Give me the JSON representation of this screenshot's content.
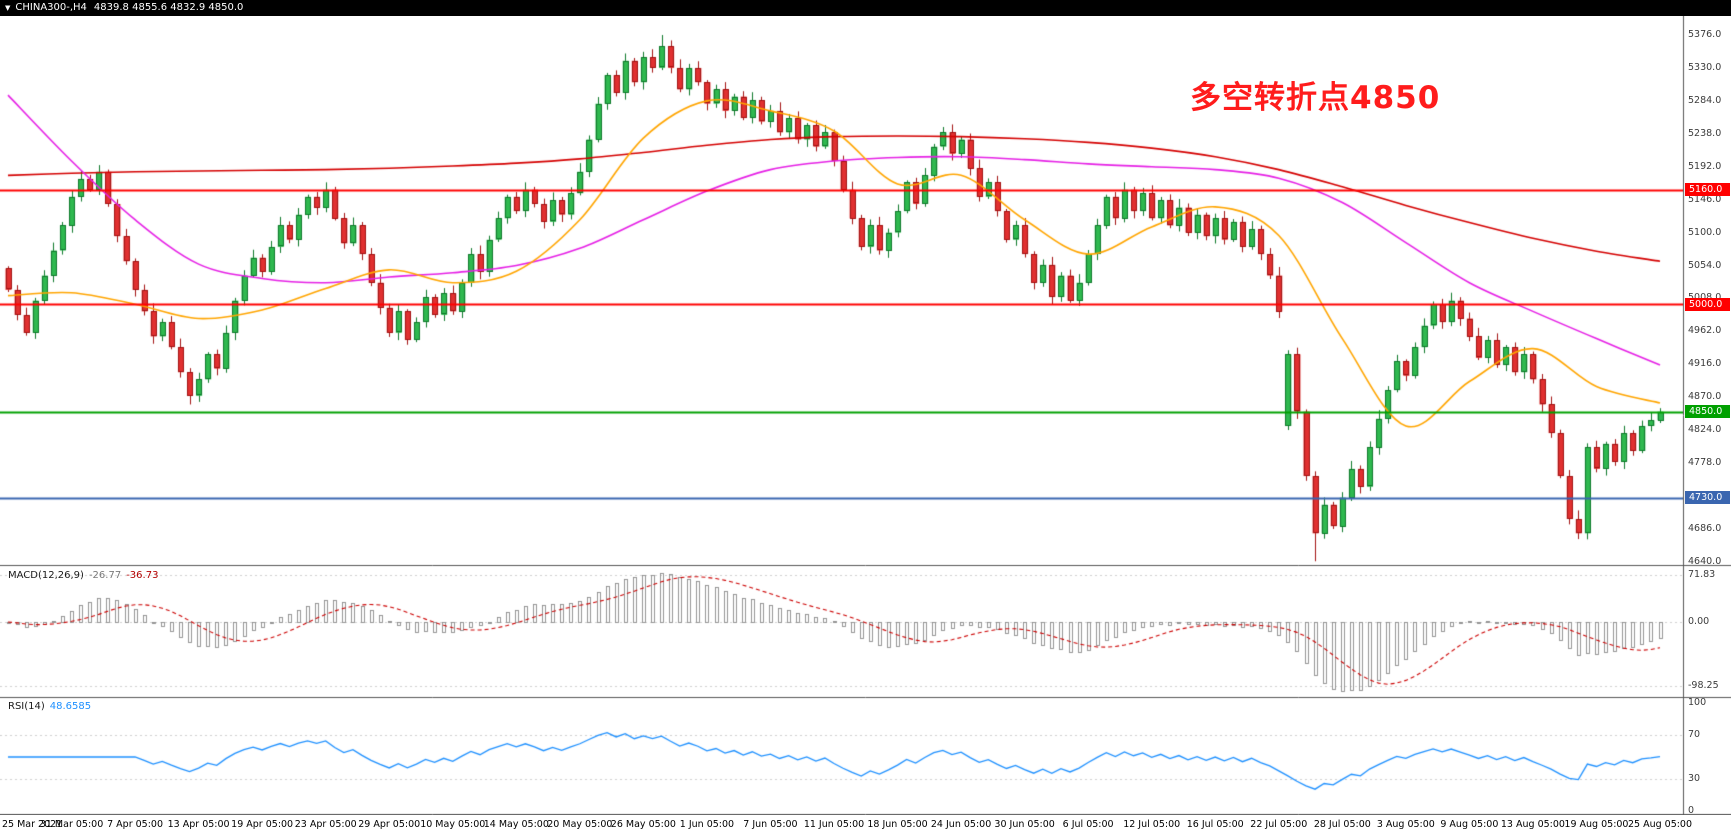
{
  "topbar": {
    "marker": "▼",
    "symbol": "CHINA300-,H4",
    "ohlc": "4839.8 4855.6 4832.9 4850.0"
  },
  "annotation": {
    "text": "多空转折点4850",
    "color": "#ff1c1c"
  },
  "chart_data": {
    "type": "candlestick",
    "symbol": "CHINA300-",
    "timeframe": "H4",
    "title": "CHINA300-,H4",
    "current_ohlc": {
      "open": 4839.8,
      "high": 4855.6,
      "low": 4832.9,
      "close": 4850.0
    },
    "ylim": [
      4634,
      5403
    ],
    "y_ticks": [
      5376.0,
      5330.0,
      5284.0,
      5238.0,
      5192.0,
      5146.0,
      5100.0,
      5054.0,
      5008.0,
      4962.0,
      4916.0,
      4870.0,
      4824.0,
      4778.0,
      4732.0,
      4686.0,
      4640.0
    ],
    "x_labels": [
      "25 Mar 2021",
      "31 Mar 05:00",
      "7 Apr 05:00",
      "13 Apr 05:00",
      "19 Apr 05:00",
      "23 Apr 05:00",
      "29 Apr 05:00",
      "10 May 05:00",
      "14 May 05:00",
      "20 May 05:00",
      "26 May 05:00",
      "1 Jun 05:00",
      "7 Jun 05:00",
      "11 Jun 05:00",
      "18 Jun 05:00",
      "24 Jun 05:00",
      "30 Jun 05:00",
      "6 Jul 05:00",
      "12 Jul 05:00",
      "16 Jul 05:00",
      "22 Jul 05:00",
      "28 Jul 05:00",
      "3 Aug 05:00",
      "9 Aug 05:00",
      "13 Aug 05:00",
      "19 Aug 05:00",
      "25 Aug 05:00"
    ],
    "bars_per_label": 7,
    "levels": [
      {
        "price": 5160.0,
        "label": "5160.0",
        "color": "#ff0000",
        "width": 2
      },
      {
        "price": 5000.0,
        "label": "5000.0",
        "color": "#ff0000",
        "width": 2
      },
      {
        "price": 4850.0,
        "label": "4850.0",
        "color": "#00a000",
        "width": 2
      },
      {
        "price": 4730.0,
        "label": "4730.0",
        "color": "#3a66b0",
        "width": 2
      }
    ],
    "closes": [
      5020,
      4985,
      4960,
      5005,
      5040,
      5075,
      5110,
      5150,
      5175,
      5160,
      5185,
      5140,
      5095,
      5060,
      5020,
      4990,
      4955,
      4975,
      4940,
      4905,
      4872,
      4895,
      4930,
      4910,
      4960,
      5005,
      5040,
      5065,
      5045,
      5080,
      5110,
      5090,
      5125,
      5150,
      5135,
      5160,
      5120,
      5085,
      5110,
      5070,
      5030,
      4995,
      4960,
      4990,
      4950,
      4975,
      5010,
      4985,
      5015,
      4990,
      5030,
      5070,
      5045,
      5090,
      5120,
      5150,
      5130,
      5160,
      5140,
      5115,
      5145,
      5125,
      5155,
      5185,
      5230,
      5280,
      5320,
      5295,
      5340,
      5310,
      5345,
      5330,
      5360,
      5330,
      5300,
      5330,
      5310,
      5280,
      5300,
      5270,
      5290,
      5260,
      5285,
      5255,
      5270,
      5240,
      5260,
      5230,
      5250,
      5220,
      5240,
      5200,
      5160,
      5120,
      5080,
      5110,
      5075,
      5100,
      5130,
      5170,
      5140,
      5180,
      5220,
      5240,
      5210,
      5230,
      5190,
      5150,
      5170,
      5130,
      5090,
      5110,
      5070,
      5030,
      5055,
      5010,
      5040,
      5005,
      5030,
      5070,
      5110,
      5150,
      5120,
      5160,
      5130,
      5155,
      5120,
      5145,
      5110,
      5135,
      5100,
      5125,
      5095,
      5120,
      5090,
      5115,
      5080,
      5105,
      5070,
      5040,
      4990,
      4930,
      4850,
      4760,
      4680,
      4720,
      4690,
      4730,
      4770,
      4745,
      4800,
      4840,
      4880,
      4920,
      4900,
      4940,
      4970,
      5000,
      4975,
      5005,
      4980,
      4955,
      4925,
      4950,
      4915,
      4940,
      4905,
      4930,
      4895,
      4860,
      4820,
      4760,
      4700,
      4680,
      4800,
      4770,
      4805,
      4780,
      4820,
      4795,
      4830,
      4838,
      4850
    ],
    "open_overrides": {
      "0": 5050,
      "141": 4830
    },
    "wick_overrides": {
      "20": {
        "low": 4860
      },
      "72": {
        "high": 5376
      },
      "144": {
        "low": 4641
      },
      "173": {
        "low": 4672
      }
    },
    "moving_averages": [
      {
        "name": "ma-slow",
        "color": "#d40000",
        "anchors": [
          5180,
          5183,
          5185,
          5186,
          5187,
          5188,
          5190,
          5193,
          5197,
          5203,
          5212,
          5222,
          5230,
          5234,
          5235,
          5234,
          5231,
          5226,
          5218,
          5206,
          5188,
          5164,
          5138,
          5114,
          5092,
          5074,
          5060
        ]
      },
      {
        "name": "ma-medium",
        "color": "#e520e5",
        "anchors": [
          5292,
          5200,
          5118,
          5056,
          5036,
          5030,
          5038,
          5044,
          5054,
          5078,
          5118,
          5158,
          5188,
          5200,
          5205,
          5206,
          5202,
          5196,
          5192,
          5188,
          5176,
          5142,
          5086,
          5030,
          4990,
          4952,
          4915
        ]
      },
      {
        "name": "ma-fast",
        "color": "#ffa500",
        "anchors": [
          5012,
          5016,
          5000,
          4980,
          4992,
          5022,
          5048,
          5030,
          5046,
          5118,
          5232,
          5284,
          5270,
          5242,
          5168,
          5180,
          5118,
          5070,
          5108,
          5136,
          5096,
          4952,
          4830,
          4892,
          4938,
          4885,
          4862
        ]
      }
    ],
    "candle_colors": {
      "up": "#2fb84f",
      "up_border": "#0e7a2b",
      "down": "#e03030",
      "down_border": "#a31212"
    }
  },
  "macd": {
    "label": "MACD(12,26,9)",
    "value_main": "-26.77",
    "value_signal": "-36.73",
    "params": {
      "fast": 12,
      "slow": 26,
      "signal": 9
    },
    "y_ticks": [
      "71.83",
      "0.00",
      "-98.25"
    ],
    "tick_values": [
      71.83,
      0,
      -98.25
    ],
    "histogram_color": "#8a8a8a",
    "signal_color": "#cc0000"
  },
  "rsi": {
    "label": "RSI(14)",
    "value": "48.6585",
    "period": 14,
    "y_ticks": [
      "100",
      "70",
      "30",
      "0"
    ],
    "tick_values": [
      100,
      70,
      30,
      0
    ],
    "levels": [
      70,
      30
    ],
    "line_color": "#1e90ff"
  }
}
